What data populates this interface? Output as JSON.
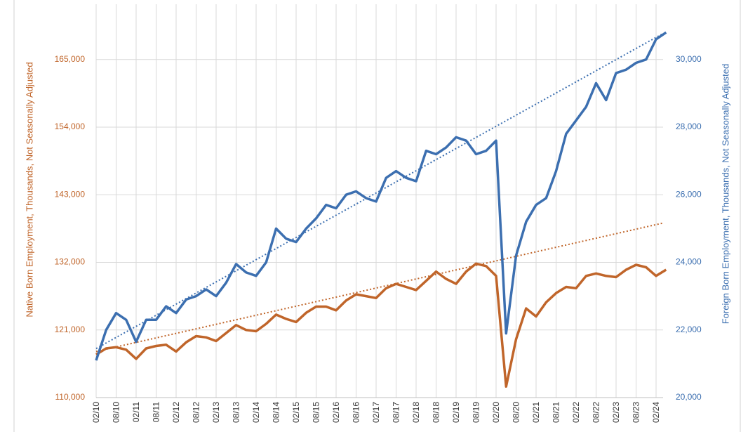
{
  "chart_data": {
    "type": "line",
    "y_label": "Native Born Employment, Thousands, Not Seasonally Adjusted",
    "y2_label": "Foreign Born Employment, Thousands, Not Seasonally Adjusted",
    "categories": [
      "02/10",
      null,
      "08/10",
      null,
      "02/11",
      null,
      "08/11",
      null,
      "02/12",
      null,
      "08/12",
      null,
      "02/13",
      null,
      "08/13",
      null,
      "02/14",
      null,
      "08/14",
      null,
      "02/15",
      null,
      "08/15",
      null,
      "02/16",
      null,
      "08/16",
      null,
      "02/17",
      null,
      "08/17",
      null,
      "02/18",
      null,
      "08/18",
      null,
      "02/19",
      null,
      "08/19",
      null,
      "02/20",
      null,
      "08/20",
      null,
      "02/21",
      null,
      "08/21",
      null,
      "02/22",
      null,
      "08/22",
      null,
      "02/23",
      null,
      "08/23",
      null,
      "02/24",
      null
    ],
    "ylim": [
      110000,
      174000
    ],
    "yticks": [
      {
        "value": 110000,
        "label": "110,000"
      },
      {
        "value": 121000,
        "label": "121,000"
      },
      {
        "value": 132000,
        "label": "132,000"
      },
      {
        "value": 143000,
        "label": "143,000"
      },
      {
        "value": 154000,
        "label": "154,000"
      },
      {
        "value": 165000,
        "label": "165,000"
      }
    ],
    "y2lim": [
      20000,
      31636
    ],
    "y2ticks": [
      {
        "value": 20000,
        "label": "20,000"
      },
      {
        "value": 22000,
        "label": "22,000"
      },
      {
        "value": 24000,
        "label": "24,000"
      },
      {
        "value": 26000,
        "label": "26,000"
      },
      {
        "value": 28000,
        "label": "28,000"
      },
      {
        "value": 30000,
        "label": "30,000"
      }
    ],
    "grid": true,
    "series": [
      {
        "color": "#c0652a",
        "axis": "y",
        "trendline": [
          117500,
          138400
        ],
        "values": [
          117000,
          118000,
          118200,
          117800,
          116300,
          118000,
          118400,
          118600,
          117500,
          119000,
          120000,
          119800,
          119200,
          120500,
          121800,
          121000,
          120800,
          122000,
          123500,
          122800,
          122300,
          123800,
          124800,
          124800,
          124200,
          125800,
          126800,
          126500,
          126200,
          127800,
          128500,
          128000,
          127500,
          129000,
          130500,
          129300,
          128500,
          130500,
          131800,
          131400,
          129800,
          111800,
          119500,
          124500,
          123200,
          125500,
          127000,
          128000,
          127800,
          129800,
          130200,
          129800,
          129600,
          130800,
          131600,
          131200,
          129800,
          130800
        ]
      },
      {
        "color": "#3c6fb0",
        "axis": "y2",
        "trendline": [
          21450,
          30770
        ],
        "values": [
          21100,
          22000,
          22500,
          22300,
          21650,
          22300,
          22300,
          22700,
          22500,
          22900,
          23000,
          23200,
          23000,
          23400,
          23950,
          23700,
          23600,
          24000,
          25000,
          24700,
          24600,
          25000,
          25300,
          25700,
          25600,
          26000,
          26100,
          25900,
          25800,
          26500,
          26700,
          26500,
          26400,
          27300,
          27200,
          27400,
          27700,
          27600,
          27200,
          27300,
          27600,
          21900,
          24200,
          25200,
          25700,
          25900,
          26700,
          27800,
          28200,
          28600,
          29300,
          28800,
          29600,
          29700,
          29900,
          30000,
          30600,
          30800
        ]
      }
    ]
  }
}
